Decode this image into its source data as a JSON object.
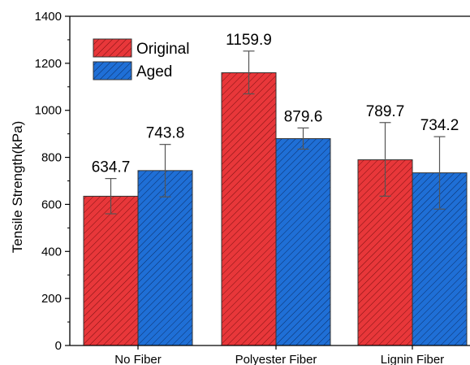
{
  "chart_data": {
    "type": "bar",
    "title": "",
    "xlabel": "",
    "ylabel": "Tensile Strength(kPa)",
    "ylim": [
      0,
      1400
    ],
    "yticks": [
      0,
      200,
      400,
      600,
      800,
      1000,
      1200,
      1400
    ],
    "categories": [
      "No Fiber",
      "Polyester Fiber",
      "Lignin Fiber"
    ],
    "series": [
      {
        "name": "Original",
        "color": "#e8373a",
        "pattern": "diagonal-hatch",
        "values": [
          634.7,
          1159.9,
          789.7
        ],
        "value_labels": [
          "634.7",
          "1159.9",
          "789.7"
        ],
        "error_low": [
          560,
          1070,
          635
        ],
        "error_high": [
          710,
          1252,
          948
        ]
      },
      {
        "name": "Aged",
        "color": "#1f6fd6",
        "pattern": "diagonal-hatch",
        "values": [
          743.8,
          879.6,
          734.2
        ],
        "value_labels": [
          "743.8",
          "879.6",
          "734.2"
        ],
        "error_low": [
          632,
          835,
          580
        ],
        "error_high": [
          855,
          925,
          888
        ]
      }
    ],
    "legend": {
      "position": "top-left",
      "entries": [
        "Original",
        "Aged"
      ]
    },
    "grid": false
  }
}
